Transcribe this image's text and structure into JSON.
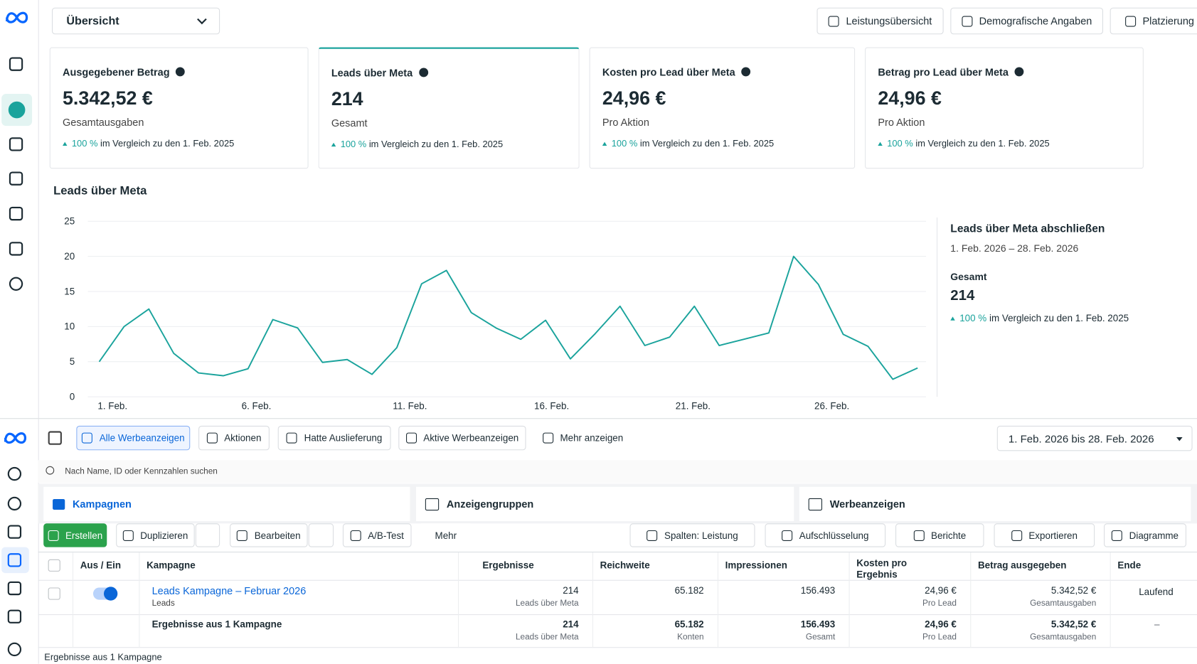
{
  "header": {
    "view": "Übersicht",
    "buttons": [
      "Leistungsübersicht",
      "Demografische Angaben",
      "Platzierung"
    ]
  },
  "cards": [
    {
      "title": "Ausgegebener Betrag",
      "value": "5.342,52 €",
      "sub": "Gesamtausgaben",
      "change": "100 %",
      "compare": "im Vergleich zu den 1. Feb. 2025"
    },
    {
      "title": "Leads über Meta",
      "value": "214",
      "sub": "Gesamt",
      "change": "100 %",
      "compare": "im Vergleich zu den 1. Feb. 2025"
    },
    {
      "title": "Kosten pro Lead über Meta",
      "value": "24,96 €",
      "sub": "Pro Aktion",
      "change": "100 %",
      "compare": "im Vergleich zu den 1. Feb. 2025"
    },
    {
      "title": "Betrag pro Lead über Meta",
      "value": "24,96 €",
      "sub": "Pro Aktion",
      "change": "100 %",
      "compare": "im Vergleich zu den 1. Feb. 2025"
    }
  ],
  "chart": {
    "type": "line",
    "title": "Leads über Meta",
    "color": "#1aa39c",
    "grid": true,
    "values": [
      5,
      10,
      12.5,
      6.2,
      3.4,
      3,
      4,
      11,
      9.8,
      4.9,
      5.3,
      3.2,
      7,
      16.1,
      18,
      12,
      9.8,
      8.2,
      10.9,
      5.4,
      9,
      12.9,
      7.3,
      8.5,
      12.9,
      7.3,
      8.2,
      9.1,
      20,
      16,
      8.9,
      7.2,
      2.5,
      4.1
    ],
    "xlim": [
      0,
      33
    ],
    "xticks": [
      {
        "value": 0,
        "label": "1. Feb."
      },
      {
        "value": 5.8,
        "label": "6. Feb."
      },
      {
        "value": 11.9,
        "label": "11. Feb."
      },
      {
        "value": 17.6,
        "label": "16. Feb."
      },
      {
        "value": 23.3,
        "label": "21. Feb."
      },
      {
        "value": 28.9,
        "label": "26. Feb."
      }
    ],
    "ylim": [
      0,
      25
    ],
    "yticks": [
      0,
      5,
      10,
      15,
      20,
      25
    ]
  },
  "summary": {
    "title": "Leads über Meta abschließen",
    "range": "1. Feb. 2026 – 28. Feb. 2026",
    "total_label": "Gesamt",
    "total": "214",
    "change": "100 %",
    "compare": "im Vergleich zu den 1. Feb. 2025"
  },
  "toolbar": {
    "filters": [
      "Alle Werbeanzeigen",
      "Aktionen",
      "Hatte Auslieferung",
      "Aktive Werbeanzeigen",
      "Mehr anzeigen"
    ],
    "date_range": "1. Feb. 2026 bis 28. Feb. 2026",
    "search_placeholder": "Nach Name, ID oder Kennzahlen suchen"
  },
  "tabs": [
    "Kampagnen",
    "Anzeigengruppen",
    "Werbeanzeigen"
  ],
  "actions": [
    "Erstellen",
    "Duplizieren",
    "Bearbeiten",
    "A/B-Test",
    "Mehr",
    "Spalten: Leistung",
    "Aufschlüsselung",
    "Berichte",
    "Exportieren",
    "Diagramme"
  ],
  "table": {
    "columns": [
      "Aus / Ein",
      "Kampagne",
      "Ergebnisse",
      "Reichweite",
      "Impressionen",
      "Kosten pro Ergebnis",
      "Betrag ausgegeben",
      "Ende"
    ],
    "row": {
      "name": "Leads Kampagne – Februar 2026",
      "objective": "Leads",
      "results": "214",
      "results_sub": "Leads über Meta",
      "reach": "65.182",
      "impressions": "156.493",
      "cost": "24,96 €",
      "cost_sub": "Pro Lead",
      "spent": "5.342,52 €",
      "spent_sub": "Gesamtausgaben",
      "end": "Laufend"
    },
    "total": {
      "label": "Ergebnisse aus 1 Kampagne",
      "results": "214",
      "results_sub": "Leads über Meta",
      "reach": "65.182",
      "reach_sub": "Konten",
      "impressions": "156.493",
      "impressions_sub": "Gesamt",
      "cost": "24,96 €",
      "cost_sub": "Pro Lead",
      "spent": "5.342,52 €",
      "spent_sub": "Gesamtausgaben",
      "end": "–"
    }
  },
  "footer": "Ergebnisse aus 1 Kampagne"
}
